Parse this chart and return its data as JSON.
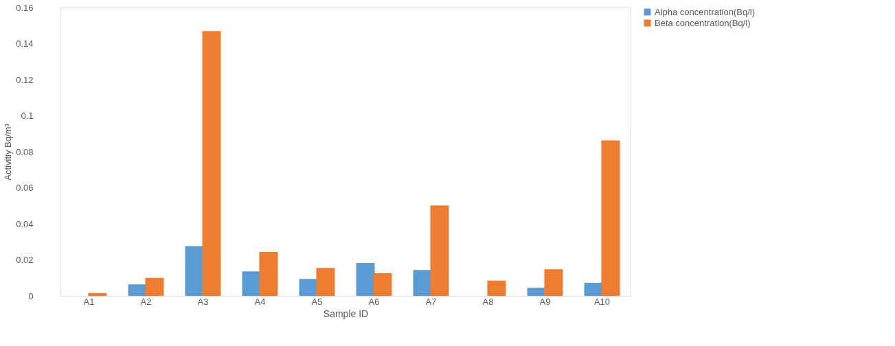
{
  "chart_data": {
    "type": "bar",
    "xlabel": "Sample ID",
    "ylabel": "Activitiy Bq/m³",
    "categories": [
      "A1",
      "A2",
      "A3",
      "A4",
      "A5",
      "A6",
      "A7",
      "A8",
      "A9",
      "A10"
    ],
    "series": [
      {
        "name": "Alpha concentration(Bq/l)",
        "color": "#5b9bd5",
        "values": [
          null,
          0.0064,
          0.0276,
          0.0136,
          0.0094,
          0.0183,
          0.0144,
          null,
          0.0045,
          0.0073
        ]
      },
      {
        "name": "Beta concentration(Bq/l)",
        "color": "#ed7d31",
        "values": [
          0.0016,
          0.01,
          0.147,
          0.0244,
          0.0155,
          0.0126,
          0.0502,
          0.0085,
          0.0148,
          0.0863
        ]
      }
    ],
    "ylim": [
      0,
      0.16
    ],
    "yticks": [
      0,
      0.02,
      0.04,
      0.06,
      0.08,
      0.1,
      0.12,
      0.14,
      0.16
    ],
    "grid": false,
    "legend": "right"
  }
}
